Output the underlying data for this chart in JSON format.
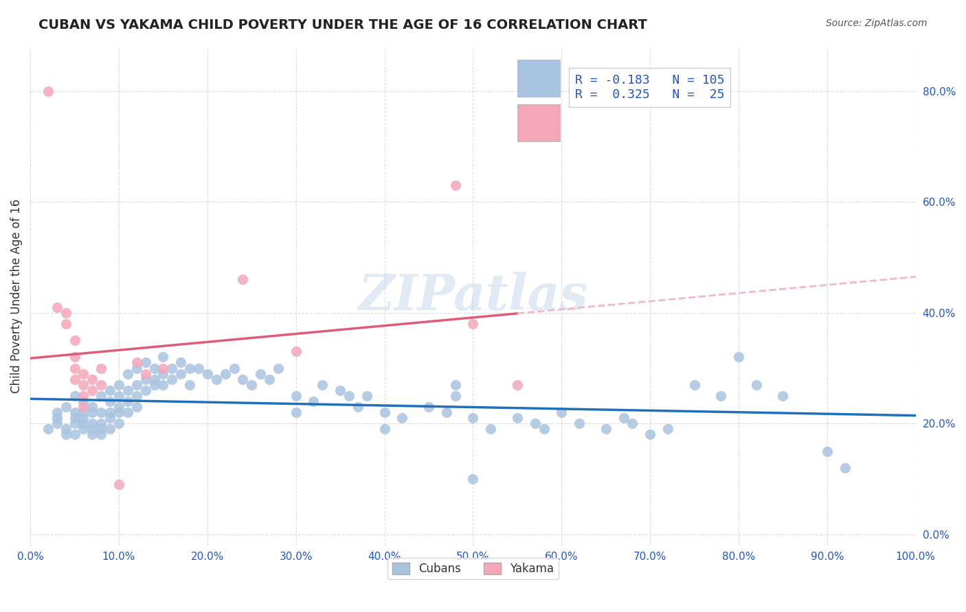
{
  "title": "CUBAN VS YAKAMA CHILD POVERTY UNDER THE AGE OF 16 CORRELATION CHART",
  "source": "Source: ZipAtlas.com",
  "ylabel": "Child Poverty Under the Age of 16",
  "xlabel": "",
  "xlim": [
    0,
    1.0
  ],
  "ylim": [
    -0.02,
    0.88
  ],
  "yticks": [
    0.0,
    0.2,
    0.4,
    0.6,
    0.8
  ],
  "xticks": [
    0.0,
    0.1,
    0.2,
    0.3,
    0.4,
    0.5,
    0.6,
    0.7,
    0.8,
    0.9,
    1.0
  ],
  "cubans_color": "#a8c4e0",
  "yakama_color": "#f4a7b9",
  "cubans_line_color": "#1f6fba",
  "yakama_line_color": "#e05a7a",
  "yakama_dash_color": "#f0b8c8",
  "cubans_R": -0.183,
  "cubans_N": 105,
  "yakama_R": 0.325,
  "yakama_N": 25,
  "watermark": "ZIPatlas",
  "legend_color": "#2255cc",
  "cubans_scatter": [
    [
      0.02,
      0.19
    ],
    [
      0.03,
      0.22
    ],
    [
      0.03,
      0.21
    ],
    [
      0.03,
      0.2
    ],
    [
      0.04,
      0.23
    ],
    [
      0.04,
      0.18
    ],
    [
      0.04,
      0.19
    ],
    [
      0.05,
      0.25
    ],
    [
      0.05,
      0.22
    ],
    [
      0.05,
      0.2
    ],
    [
      0.05,
      0.21
    ],
    [
      0.05,
      0.18
    ],
    [
      0.06,
      0.24
    ],
    [
      0.06,
      0.22
    ],
    [
      0.06,
      0.2
    ],
    [
      0.06,
      0.19
    ],
    [
      0.06,
      0.21
    ],
    [
      0.07,
      0.23
    ],
    [
      0.07,
      0.2
    ],
    [
      0.07,
      0.19
    ],
    [
      0.07,
      0.18
    ],
    [
      0.07,
      0.22
    ],
    [
      0.08,
      0.25
    ],
    [
      0.08,
      0.22
    ],
    [
      0.08,
      0.2
    ],
    [
      0.08,
      0.19
    ],
    [
      0.08,
      0.18
    ],
    [
      0.09,
      0.26
    ],
    [
      0.09,
      0.24
    ],
    [
      0.09,
      0.22
    ],
    [
      0.09,
      0.21
    ],
    [
      0.09,
      0.19
    ],
    [
      0.1,
      0.27
    ],
    [
      0.1,
      0.25
    ],
    [
      0.1,
      0.23
    ],
    [
      0.1,
      0.22
    ],
    [
      0.1,
      0.2
    ],
    [
      0.11,
      0.29
    ],
    [
      0.11,
      0.26
    ],
    [
      0.11,
      0.24
    ],
    [
      0.11,
      0.22
    ],
    [
      0.12,
      0.3
    ],
    [
      0.12,
      0.27
    ],
    [
      0.12,
      0.25
    ],
    [
      0.12,
      0.23
    ],
    [
      0.13,
      0.31
    ],
    [
      0.13,
      0.28
    ],
    [
      0.13,
      0.26
    ],
    [
      0.14,
      0.3
    ],
    [
      0.14,
      0.28
    ],
    [
      0.14,
      0.27
    ],
    [
      0.15,
      0.32
    ],
    [
      0.15,
      0.29
    ],
    [
      0.15,
      0.27
    ],
    [
      0.16,
      0.3
    ],
    [
      0.16,
      0.28
    ],
    [
      0.17,
      0.31
    ],
    [
      0.17,
      0.29
    ],
    [
      0.18,
      0.3
    ],
    [
      0.18,
      0.27
    ],
    [
      0.19,
      0.3
    ],
    [
      0.2,
      0.29
    ],
    [
      0.21,
      0.28
    ],
    [
      0.22,
      0.29
    ],
    [
      0.23,
      0.3
    ],
    [
      0.24,
      0.28
    ],
    [
      0.25,
      0.27
    ],
    [
      0.26,
      0.29
    ],
    [
      0.27,
      0.28
    ],
    [
      0.28,
      0.3
    ],
    [
      0.3,
      0.25
    ],
    [
      0.3,
      0.22
    ],
    [
      0.32,
      0.24
    ],
    [
      0.33,
      0.27
    ],
    [
      0.35,
      0.26
    ],
    [
      0.36,
      0.25
    ],
    [
      0.37,
      0.23
    ],
    [
      0.38,
      0.25
    ],
    [
      0.4,
      0.22
    ],
    [
      0.4,
      0.19
    ],
    [
      0.42,
      0.21
    ],
    [
      0.45,
      0.23
    ],
    [
      0.47,
      0.22
    ],
    [
      0.48,
      0.25
    ],
    [
      0.48,
      0.27
    ],
    [
      0.5,
      0.21
    ],
    [
      0.5,
      0.1
    ],
    [
      0.52,
      0.19
    ],
    [
      0.55,
      0.21
    ],
    [
      0.57,
      0.2
    ],
    [
      0.58,
      0.19
    ],
    [
      0.6,
      0.22
    ],
    [
      0.62,
      0.2
    ],
    [
      0.65,
      0.19
    ],
    [
      0.67,
      0.21
    ],
    [
      0.68,
      0.2
    ],
    [
      0.7,
      0.18
    ],
    [
      0.72,
      0.19
    ],
    [
      0.75,
      0.27
    ],
    [
      0.78,
      0.25
    ],
    [
      0.8,
      0.32
    ],
    [
      0.82,
      0.27
    ],
    [
      0.85,
      0.25
    ],
    [
      0.9,
      0.15
    ],
    [
      0.92,
      0.12
    ]
  ],
  "yakama_scatter": [
    [
      0.02,
      0.8
    ],
    [
      0.03,
      0.41
    ],
    [
      0.04,
      0.4
    ],
    [
      0.04,
      0.38
    ],
    [
      0.05,
      0.35
    ],
    [
      0.05,
      0.32
    ],
    [
      0.05,
      0.3
    ],
    [
      0.05,
      0.28
    ],
    [
      0.06,
      0.29
    ],
    [
      0.06,
      0.27
    ],
    [
      0.06,
      0.25
    ],
    [
      0.06,
      0.23
    ],
    [
      0.07,
      0.28
    ],
    [
      0.07,
      0.26
    ],
    [
      0.08,
      0.3
    ],
    [
      0.08,
      0.27
    ],
    [
      0.1,
      0.09
    ],
    [
      0.12,
      0.31
    ],
    [
      0.13,
      0.29
    ],
    [
      0.15,
      0.3
    ],
    [
      0.48,
      0.63
    ],
    [
      0.5,
      0.38
    ],
    [
      0.55,
      0.27
    ],
    [
      0.24,
      0.46
    ],
    [
      0.3,
      0.33
    ]
  ]
}
